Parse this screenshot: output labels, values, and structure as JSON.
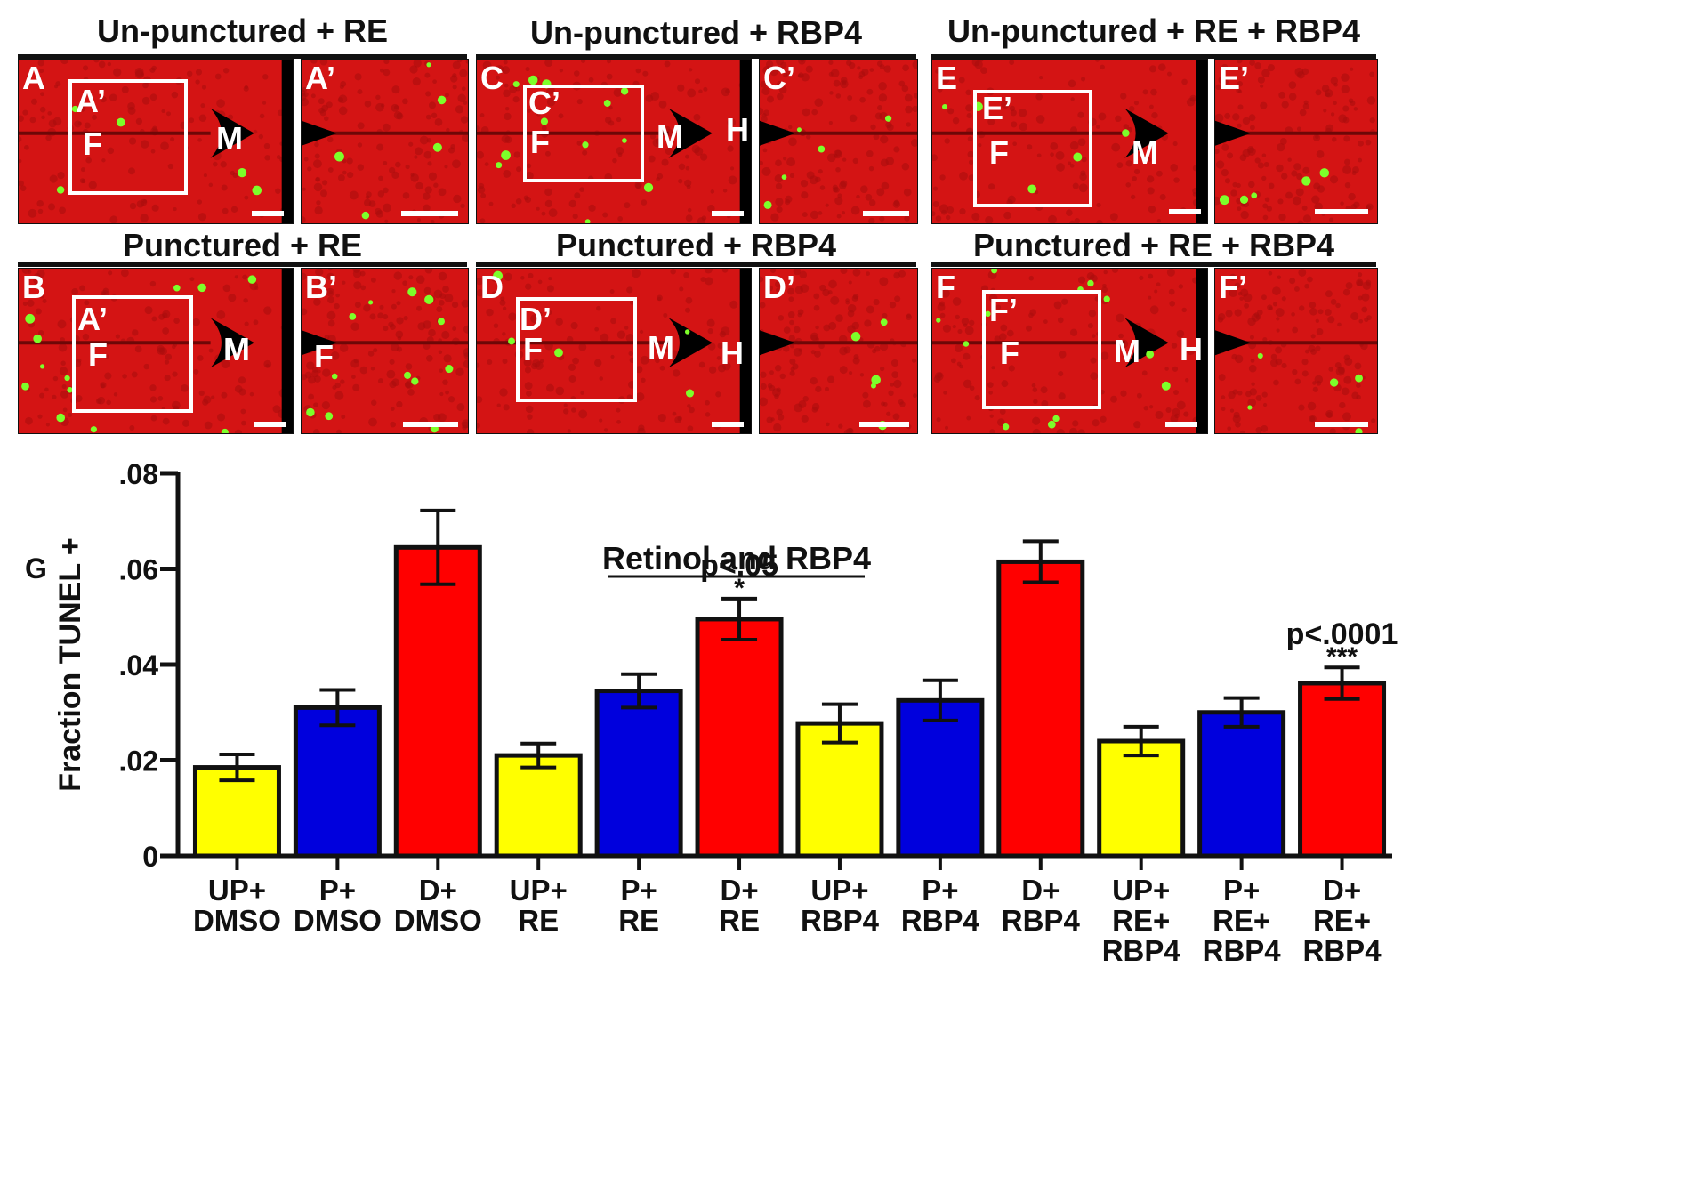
{
  "column_titles": [
    "Un-punctured + RE",
    "Un-punctured + RBP4",
    "Un-punctured + RE + RBP4"
  ],
  "row2_titles": [
    "Punctured + RE",
    "Punctured + RBP4",
    "Punctured + RE + RBP4"
  ],
  "colors": {
    "tissue": "#d41414",
    "tunel": "#7dff2a",
    "up": "#ffff00",
    "p": "#0000dd",
    "d": "#ff0000"
  },
  "panels": [
    {
      "id": "A",
      "letter": "A",
      "inset": "A’",
      "labels": [
        "F",
        "M"
      ]
    },
    {
      "id": "A2",
      "letter": "A’",
      "labels": []
    },
    {
      "id": "C",
      "letter": "C",
      "inset": "C’",
      "labels": [
        "F",
        "M",
        "H"
      ]
    },
    {
      "id": "C2",
      "letter": "C’",
      "labels": []
    },
    {
      "id": "E",
      "letter": "E",
      "inset": "E’",
      "labels": [
        "F",
        "M"
      ]
    },
    {
      "id": "E2",
      "letter": "E’",
      "labels": []
    },
    {
      "id": "B",
      "letter": "B",
      "inset": "A’",
      "labels": [
        "F",
        "M"
      ]
    },
    {
      "id": "B2",
      "letter": "B’",
      "labels": [
        "F"
      ]
    },
    {
      "id": "D",
      "letter": "D",
      "inset": "D’",
      "labels": [
        "F",
        "M",
        "H"
      ]
    },
    {
      "id": "D2",
      "letter": "D’",
      "labels": []
    },
    {
      "id": "F",
      "letter": "F",
      "inset": "F’",
      "labels": [
        "F",
        "M",
        "H"
      ]
    },
    {
      "id": "F2",
      "letter": "F’",
      "labels": []
    }
  ],
  "chart_data": {
    "type": "bar",
    "panel_letter": "G",
    "title": "Retinol and RBP4",
    "ylabel": "Fraction TUNEL +",
    "xlabel": "",
    "ylim": [
      0,
      0.08
    ],
    "yticks": [
      {
        "value": 0,
        "label": "0"
      },
      {
        "value": 0.02,
        "label": ".02"
      },
      {
        "value": 0.04,
        "label": ".04"
      },
      {
        "value": 0.06,
        "label": ".06"
      },
      {
        "value": 0.08,
        "label": ".08"
      }
    ],
    "categories": [
      [
        "UP+",
        "DMSO"
      ],
      [
        "P+",
        "DMSO"
      ],
      [
        "D+",
        "DMSO"
      ],
      [
        "UP+",
        "RE"
      ],
      [
        "P+",
        "RE"
      ],
      [
        "D+",
        "RE"
      ],
      [
        "UP+",
        "RBP4"
      ],
      [
        "P+",
        "RBP4"
      ],
      [
        "D+",
        "RBP4"
      ],
      [
        "UP+",
        "RE+",
        "RBP4"
      ],
      [
        "P+",
        "RE+",
        "RBP4"
      ],
      [
        "D+",
        "RE+",
        "RBP4"
      ]
    ],
    "values": [
      0.0185,
      0.031,
      0.0645,
      0.021,
      0.0345,
      0.0495,
      0.0277,
      0.0325,
      0.0615,
      0.024,
      0.03,
      0.0361
    ],
    "errors": [
      0.0027,
      0.0037,
      0.0077,
      0.0025,
      0.0035,
      0.0043,
      0.004,
      0.0042,
      0.0043,
      0.003,
      0.003,
      0.0033
    ],
    "groups": [
      "up",
      "p",
      "d",
      "up",
      "p",
      "d",
      "up",
      "p",
      "d",
      "up",
      "p",
      "d"
    ],
    "annotations": [
      {
        "index": 5,
        "pvalue": "p<.05",
        "stars": "*"
      },
      {
        "index": 11,
        "pvalue": "p<.0001",
        "stars": "***"
      }
    ],
    "grid": false
  }
}
